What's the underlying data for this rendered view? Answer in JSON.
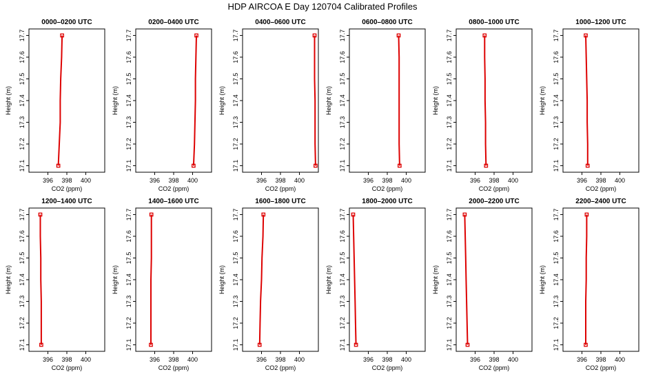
{
  "title": "HDP AIRCOA E  Day 120704  Calibrated Profiles",
  "chart_data": [
    {
      "type": "line",
      "title": "0000–0200 UTC",
      "xlabel": "CO2 (ppm)",
      "ylabel": "Height (m)",
      "xlim": [
        394,
        402
      ],
      "ylim": [
        17.07,
        17.73
      ],
      "xticks": [
        396,
        398,
        400
      ],
      "yticks": [
        17.1,
        17.2,
        17.3,
        17.4,
        17.5,
        17.6,
        17.7
      ],
      "points": [
        [
          397.5,
          17.7
        ],
        [
          397.45,
          17.6
        ],
        [
          397.35,
          17.5
        ],
        [
          397.3,
          17.4
        ],
        [
          397.3,
          17.3
        ],
        [
          397.2,
          17.2
        ],
        [
          397.1,
          17.1
        ]
      ],
      "markers": [
        [
          397.5,
          17.7
        ],
        [
          397.1,
          17.1
        ]
      ]
    },
    {
      "type": "line",
      "title": "0200–0400 UTC",
      "xlabel": "CO2 (ppm)",
      "ylabel": "Height (m)",
      "xlim": [
        394,
        402
      ],
      "ylim": [
        17.07,
        17.73
      ],
      "xticks": [
        396,
        398,
        400
      ],
      "yticks": [
        17.1,
        17.2,
        17.3,
        17.4,
        17.5,
        17.6,
        17.7
      ],
      "points": [
        [
          400.4,
          17.7
        ],
        [
          400.35,
          17.6
        ],
        [
          400.3,
          17.5
        ],
        [
          400.3,
          17.4
        ],
        [
          400.25,
          17.3
        ],
        [
          400.2,
          17.2
        ],
        [
          400.1,
          17.1
        ]
      ],
      "markers": [
        [
          400.4,
          17.7
        ],
        [
          400.1,
          17.1
        ]
      ]
    },
    {
      "type": "line",
      "title": "0400–0600 UTC",
      "xlabel": "CO2 (ppm)",
      "ylabel": "Height (m)",
      "xlim": [
        394,
        402
      ],
      "ylim": [
        17.07,
        17.73
      ],
      "xticks": [
        396,
        398,
        400
      ],
      "yticks": [
        17.1,
        17.2,
        17.3,
        17.4,
        17.5,
        17.6,
        17.7
      ],
      "points": [
        [
          401.6,
          17.7
        ],
        [
          401.6,
          17.6
        ],
        [
          401.6,
          17.5
        ],
        [
          401.65,
          17.4
        ],
        [
          401.65,
          17.3
        ],
        [
          401.65,
          17.2
        ],
        [
          401.7,
          17.1
        ]
      ],
      "markers": [
        [
          401.6,
          17.7
        ],
        [
          401.7,
          17.1
        ]
      ]
    },
    {
      "type": "line",
      "title": "0600–0800 UTC",
      "xlabel": "CO2 (ppm)",
      "ylabel": "Height (m)",
      "xlim": [
        394,
        402
      ],
      "ylim": [
        17.07,
        17.73
      ],
      "xticks": [
        396,
        398,
        400
      ],
      "yticks": [
        17.1,
        17.2,
        17.3,
        17.4,
        17.5,
        17.6,
        17.7
      ],
      "points": [
        [
          399.2,
          17.7
        ],
        [
          399.25,
          17.6
        ],
        [
          399.25,
          17.5
        ],
        [
          399.25,
          17.4
        ],
        [
          399.25,
          17.3
        ],
        [
          399.25,
          17.2
        ],
        [
          399.3,
          17.1
        ]
      ],
      "markers": [
        [
          399.2,
          17.7
        ],
        [
          399.3,
          17.1
        ]
      ]
    },
    {
      "type": "line",
      "title": "0800–1000 UTC",
      "xlabel": "CO2 (ppm)",
      "ylabel": "Height (m)",
      "xlim": [
        394,
        402
      ],
      "ylim": [
        17.07,
        17.73
      ],
      "xticks": [
        396,
        398,
        400
      ],
      "yticks": [
        17.1,
        17.2,
        17.3,
        17.4,
        17.5,
        17.6,
        17.7
      ],
      "points": [
        [
          397.0,
          17.7
        ],
        [
          397.0,
          17.6
        ],
        [
          397.05,
          17.5
        ],
        [
          397.05,
          17.4
        ],
        [
          397.1,
          17.3
        ],
        [
          397.1,
          17.2
        ],
        [
          397.15,
          17.1
        ]
      ],
      "markers": [
        [
          397.0,
          17.7
        ],
        [
          397.15,
          17.1
        ]
      ]
    },
    {
      "type": "line",
      "title": "1000–1200 UTC",
      "xlabel": "CO2 (ppm)",
      "ylabel": "Height (m)",
      "xlim": [
        394,
        402
      ],
      "ylim": [
        17.07,
        17.73
      ],
      "xticks": [
        396,
        398,
        400
      ],
      "yticks": [
        17.1,
        17.2,
        17.3,
        17.4,
        17.5,
        17.6,
        17.7
      ],
      "points": [
        [
          396.4,
          17.7
        ],
        [
          396.45,
          17.6
        ],
        [
          396.5,
          17.5
        ],
        [
          396.55,
          17.4
        ],
        [
          396.55,
          17.3
        ],
        [
          396.6,
          17.2
        ],
        [
          396.6,
          17.1
        ]
      ],
      "markers": [
        [
          396.4,
          17.7
        ],
        [
          396.6,
          17.1
        ]
      ]
    },
    {
      "type": "line",
      "title": "1200–1400 UTC",
      "xlabel": "CO2 (ppm)",
      "ylabel": "Height (m)",
      "xlim": [
        394,
        402
      ],
      "ylim": [
        17.07,
        17.73
      ],
      "xticks": [
        396,
        398,
        400
      ],
      "yticks": [
        17.1,
        17.2,
        17.3,
        17.4,
        17.5,
        17.6,
        17.7
      ],
      "points": [
        [
          395.2,
          17.7
        ],
        [
          395.2,
          17.6
        ],
        [
          395.25,
          17.5
        ],
        [
          395.25,
          17.4
        ],
        [
          395.3,
          17.3
        ],
        [
          395.3,
          17.2
        ],
        [
          395.3,
          17.1
        ]
      ],
      "markers": [
        [
          395.2,
          17.7
        ],
        [
          395.3,
          17.1
        ]
      ]
    },
    {
      "type": "line",
      "title": "1400–1600 UTC",
      "xlabel": "CO2 (ppm)",
      "ylabel": "Height (m)",
      "xlim": [
        394,
        402
      ],
      "ylim": [
        17.07,
        17.73
      ],
      "xticks": [
        396,
        398,
        400
      ],
      "yticks": [
        17.1,
        17.2,
        17.3,
        17.4,
        17.5,
        17.6,
        17.7
      ],
      "points": [
        [
          395.65,
          17.7
        ],
        [
          395.65,
          17.6
        ],
        [
          395.65,
          17.5
        ],
        [
          395.6,
          17.4
        ],
        [
          395.6,
          17.3
        ],
        [
          395.6,
          17.2
        ],
        [
          395.6,
          17.1
        ]
      ],
      "markers": [
        [
          395.65,
          17.7
        ],
        [
          395.6,
          17.1
        ]
      ]
    },
    {
      "type": "line",
      "title": "1600–1800 UTC",
      "xlabel": "CO2 (ppm)",
      "ylabel": "Height (m)",
      "xlim": [
        394,
        402
      ],
      "ylim": [
        17.07,
        17.73
      ],
      "xticks": [
        396,
        398,
        400
      ],
      "yticks": [
        17.1,
        17.2,
        17.3,
        17.4,
        17.5,
        17.6,
        17.7
      ],
      "points": [
        [
          396.2,
          17.7
        ],
        [
          396.15,
          17.6
        ],
        [
          396.05,
          17.5
        ],
        [
          396.0,
          17.4
        ],
        [
          395.9,
          17.3
        ],
        [
          395.85,
          17.2
        ],
        [
          395.8,
          17.1
        ]
      ],
      "markers": [
        [
          396.2,
          17.7
        ],
        [
          395.8,
          17.1
        ]
      ]
    },
    {
      "type": "line",
      "title": "1800–2000 UTC",
      "xlabel": "CO2 (ppm)",
      "ylabel": "Height (m)",
      "xlim": [
        394,
        402
      ],
      "ylim": [
        17.07,
        17.73
      ],
      "xticks": [
        396,
        398,
        400
      ],
      "yticks": [
        17.1,
        17.2,
        17.3,
        17.4,
        17.5,
        17.6,
        17.7
      ],
      "points": [
        [
          394.4,
          17.7
        ],
        [
          394.45,
          17.6
        ],
        [
          394.5,
          17.5
        ],
        [
          394.55,
          17.4
        ],
        [
          394.6,
          17.3
        ],
        [
          394.65,
          17.2
        ],
        [
          394.7,
          17.1
        ]
      ],
      "markers": [
        [
          394.4,
          17.7
        ],
        [
          394.7,
          17.1
        ]
      ]
    },
    {
      "type": "line",
      "title": "2000–2200 UTC",
      "xlabel": "CO2 (ppm)",
      "ylabel": "Height (m)",
      "xlim": [
        394,
        402
      ],
      "ylim": [
        17.07,
        17.73
      ],
      "xticks": [
        396,
        398,
        400
      ],
      "yticks": [
        17.1,
        17.2,
        17.3,
        17.4,
        17.5,
        17.6,
        17.7
      ],
      "points": [
        [
          394.9,
          17.7
        ],
        [
          394.95,
          17.6
        ],
        [
          395.0,
          17.5
        ],
        [
          395.05,
          17.4
        ],
        [
          395.1,
          17.3
        ],
        [
          395.15,
          17.2
        ],
        [
          395.2,
          17.1
        ]
      ],
      "markers": [
        [
          394.9,
          17.7
        ],
        [
          395.2,
          17.1
        ]
      ]
    },
    {
      "type": "line",
      "title": "2200–2400 UTC",
      "xlabel": "CO2 (ppm)",
      "ylabel": "Height (m)",
      "xlim": [
        394,
        402
      ],
      "ylim": [
        17.07,
        17.73
      ],
      "xticks": [
        396,
        398,
        400
      ],
      "yticks": [
        17.1,
        17.2,
        17.3,
        17.4,
        17.5,
        17.6,
        17.7
      ],
      "points": [
        [
          396.5,
          17.7
        ],
        [
          396.5,
          17.6
        ],
        [
          396.45,
          17.5
        ],
        [
          396.45,
          17.4
        ],
        [
          396.4,
          17.3
        ],
        [
          396.4,
          17.2
        ],
        [
          396.4,
          17.1
        ]
      ],
      "markers": [
        [
          396.5,
          17.7
        ],
        [
          396.4,
          17.1
        ]
      ]
    }
  ],
  "colors": {
    "line": "#dd0000",
    "axis": "#000000"
  }
}
